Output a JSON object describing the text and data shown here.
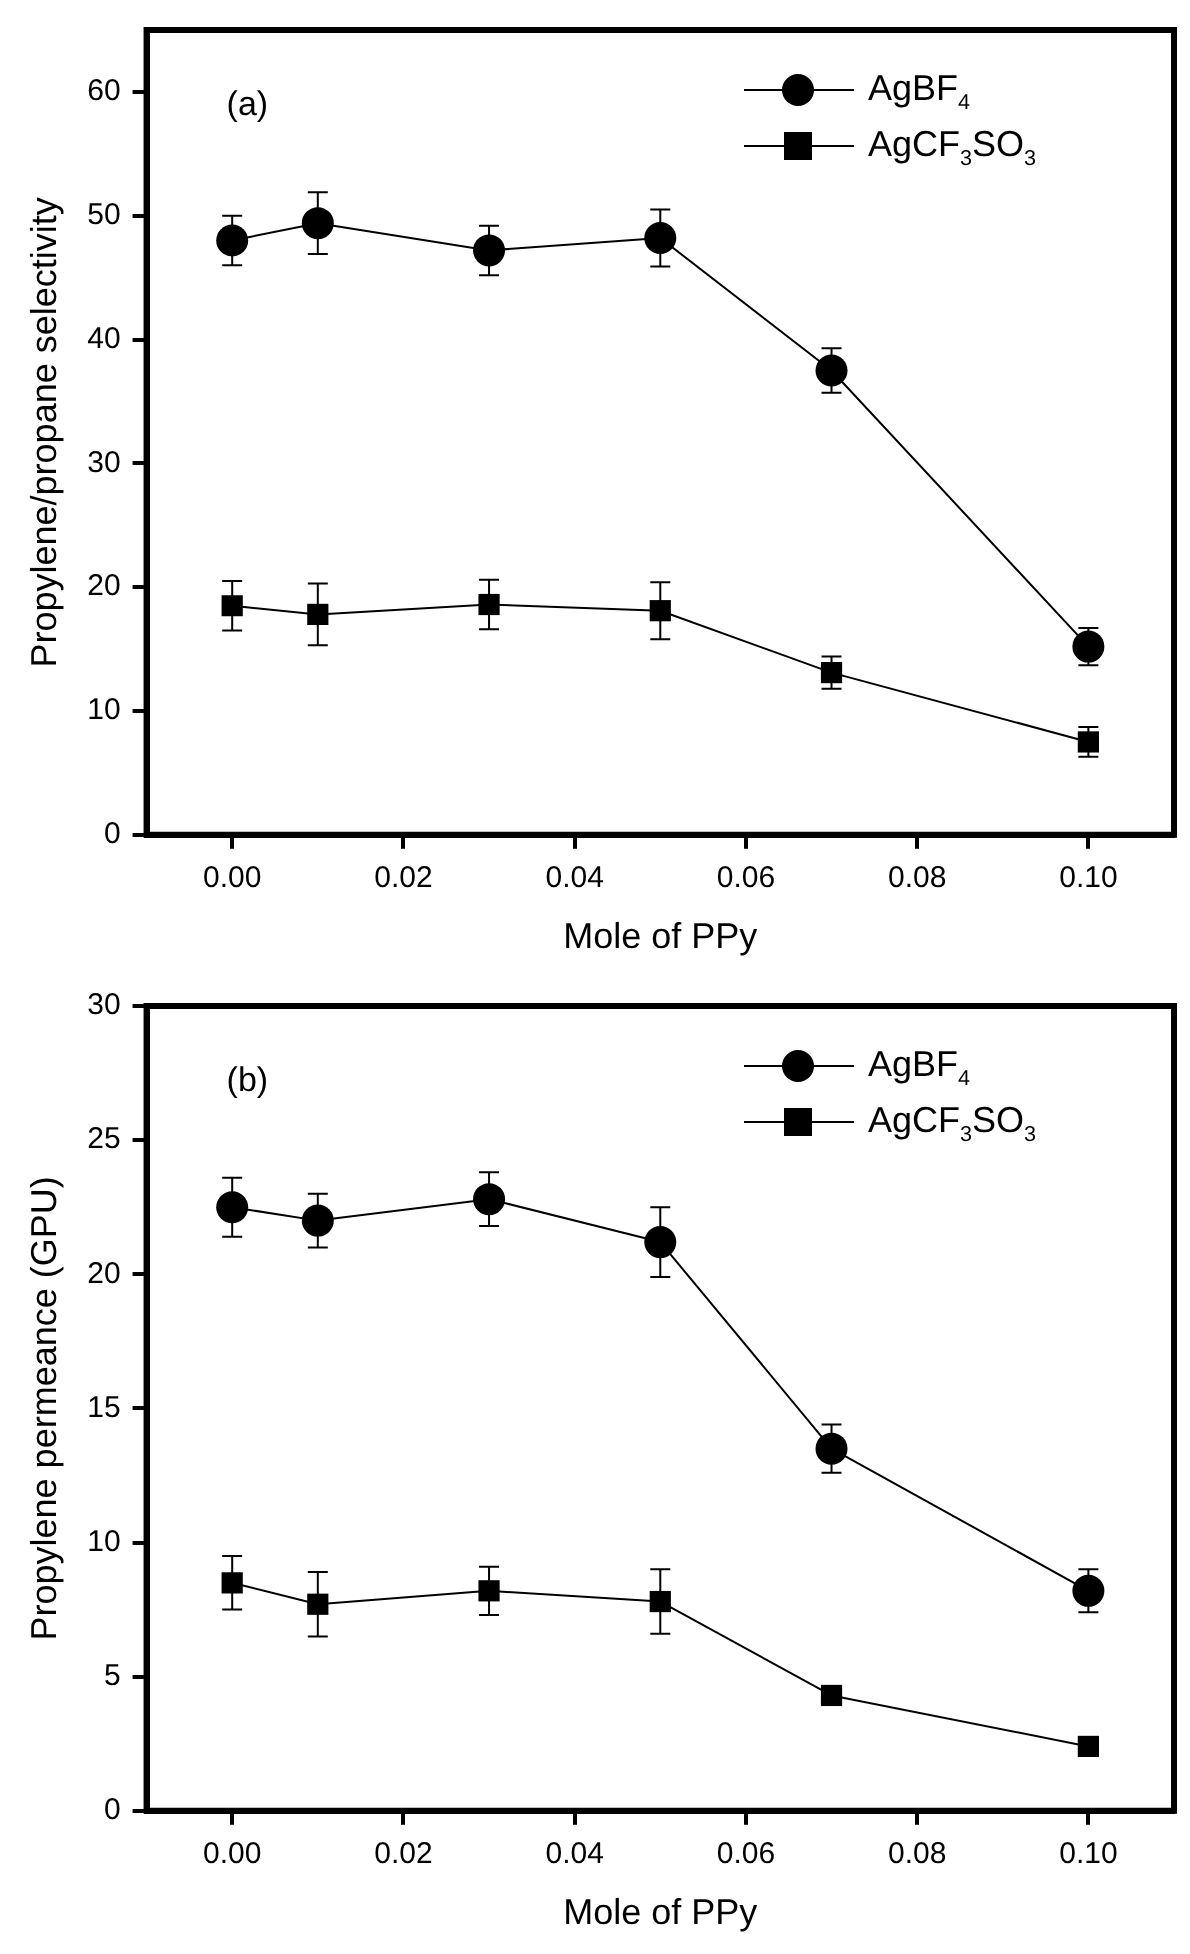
{
  "chart_data": [
    {
      "type": "line",
      "xlabel": "Mole of PPy",
      "ylabel": "Propylene/propane selectivity",
      "annotations": [
        "(a)"
      ],
      "x": [
        0,
        0.01,
        0.03,
        0.05,
        0.07,
        0.1
      ],
      "series": [
        {
          "name": "AgBF$_{4}$",
          "color": "#000000",
          "marker": "circle",
          "values": [
            48,
            49.4,
            47.2,
            48.2,
            37.5,
            15.2
          ],
          "errors": [
            2,
            2.5,
            2,
            2.3,
            1.8,
            1.5
          ]
        },
        {
          "name": "AgCF$_{3}$SO$_{3}$",
          "color": "#000000",
          "marker": "square",
          "values": [
            18.5,
            17.8,
            18.6,
            18.1,
            13.1,
            7.5
          ],
          "errors": [
            2,
            2.5,
            2,
            2.3,
            1.3,
            1.2
          ]
        }
      ],
      "xlim": [
        -0.01,
        0.11
      ],
      "xticks": [
        {
          "value": 0,
          "label": "0.00"
        },
        {
          "value": 0.02,
          "label": "0.02"
        },
        {
          "value": 0.04,
          "label": "0.04"
        },
        {
          "value": 0.06,
          "label": "0.06"
        },
        {
          "value": 0.08,
          "label": "0.08"
        },
        {
          "value": 0.1,
          "label": "0.10"
        }
      ],
      "ylim": [
        0,
        65
      ],
      "yticks": [
        0,
        10,
        20,
        30,
        40,
        50,
        60
      ],
      "legend": "top right",
      "grid": false,
      "line_style": "solid"
    },
    {
      "type": "line",
      "xlabel": "Mole of PPy",
      "ylabel": "Propylene permeance (GPU)",
      "annotations": [
        "(b)"
      ],
      "x": [
        0,
        0.01,
        0.03,
        0.05,
        0.07,
        0.1
      ],
      "series": [
        {
          "name": "AgBF$_{4}$",
          "color": "#000000",
          "marker": "circle",
          "values": [
            22.5,
            22,
            22.8,
            21.2,
            13.5,
            8.2
          ],
          "errors": [
            1.1,
            1,
            1,
            1.3,
            0.9,
            0.8
          ]
        },
        {
          "name": "AgCF$_{3}$SO$_{3}$",
          "color": "#000000",
          "marker": "square",
          "values": [
            8.5,
            7.7,
            8.2,
            7.8,
            4.3,
            2.4
          ],
          "errors": [
            1,
            1.2,
            0.9,
            1.2,
            null,
            null
          ]
        }
      ],
      "xlim": [
        -0.01,
        0.11
      ],
      "xticks": [
        {
          "value": 0,
          "label": "0.00"
        },
        {
          "value": 0.02,
          "label": "0.02"
        },
        {
          "value": 0.04,
          "label": "0.04"
        },
        {
          "value": 0.06,
          "label": "0.06"
        },
        {
          "value": 0.08,
          "label": "0.08"
        },
        {
          "value": 0.1,
          "label": "0.10"
        }
      ],
      "ylim": [
        0,
        30
      ],
      "yticks": [
        0,
        5,
        10,
        15,
        20,
        25,
        30
      ],
      "legend": "top right",
      "grid": false,
      "line_style": "solid"
    }
  ]
}
